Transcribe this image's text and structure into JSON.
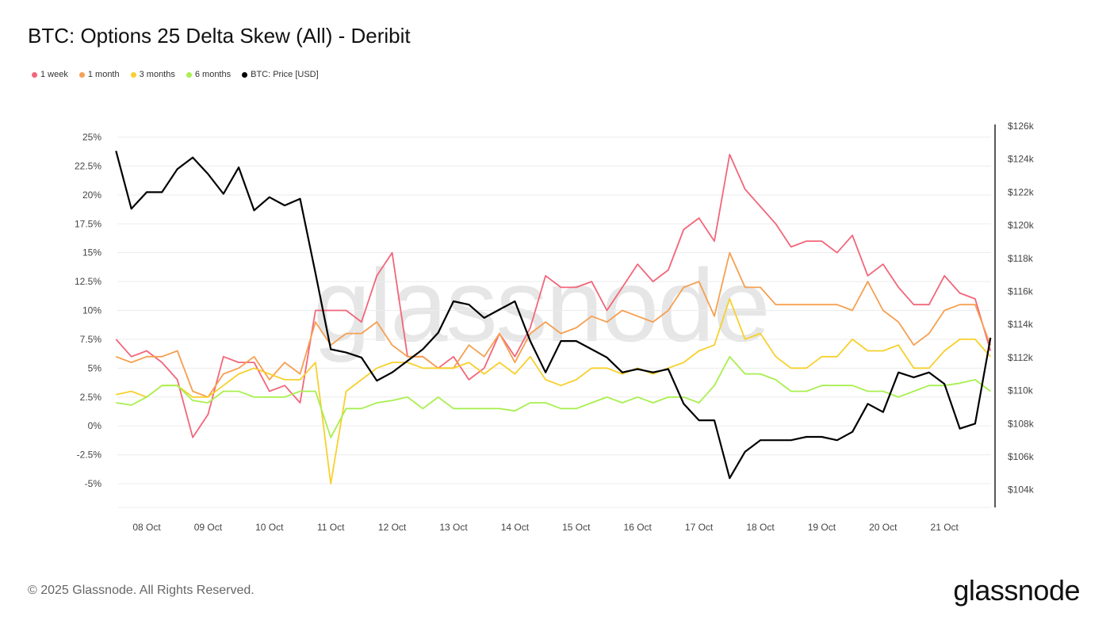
{
  "header": {
    "title": "BTC: Options 25 Delta Skew (All) - Deribit"
  },
  "footer": {
    "copyright": "© 2025 Glassnode. All Rights Reserved.",
    "logo": "glassnode",
    "watermark": "glassnode"
  },
  "chart_data": {
    "type": "line",
    "title": "BTC: Options 25 Delta Skew (All) - Deribit",
    "legend_position": "top-left",
    "grid": true,
    "x": [
      "2025-10-07T12:00",
      "2025-10-07T18:00",
      "2025-10-08T00:00",
      "2025-10-08T06:00",
      "2025-10-08T12:00",
      "2025-10-08T18:00",
      "2025-10-09T00:00",
      "2025-10-09T06:00",
      "2025-10-09T12:00",
      "2025-10-09T18:00",
      "2025-10-10T00:00",
      "2025-10-10T06:00",
      "2025-10-10T12:00",
      "2025-10-10T18:00",
      "2025-10-11T00:00",
      "2025-10-11T06:00",
      "2025-10-11T12:00",
      "2025-10-11T18:00",
      "2025-10-12T00:00",
      "2025-10-12T06:00",
      "2025-10-12T12:00",
      "2025-10-12T18:00",
      "2025-10-13T00:00",
      "2025-10-13T06:00",
      "2025-10-13T12:00",
      "2025-10-13T18:00",
      "2025-10-14T00:00",
      "2025-10-14T06:00",
      "2025-10-14T12:00",
      "2025-10-14T18:00",
      "2025-10-15T00:00",
      "2025-10-15T06:00",
      "2025-10-15T12:00",
      "2025-10-15T18:00",
      "2025-10-16T00:00",
      "2025-10-16T06:00",
      "2025-10-16T12:00",
      "2025-10-16T18:00",
      "2025-10-17T00:00",
      "2025-10-17T06:00",
      "2025-10-17T12:00",
      "2025-10-17T18:00",
      "2025-10-18T00:00",
      "2025-10-18T06:00",
      "2025-10-18T12:00",
      "2025-10-18T18:00",
      "2025-10-19T00:00",
      "2025-10-19T06:00",
      "2025-10-19T12:00",
      "2025-10-19T18:00",
      "2025-10-20T00:00",
      "2025-10-20T06:00",
      "2025-10-20T12:00",
      "2025-10-20T18:00",
      "2025-10-21T00:00",
      "2025-10-21T06:00",
      "2025-10-21T12:00",
      "2025-10-21T18:00"
    ],
    "x_ticks": [
      "08 Oct",
      "09 Oct",
      "10 Oct",
      "11 Oct",
      "12 Oct",
      "13 Oct",
      "14 Oct",
      "15 Oct",
      "16 Oct",
      "17 Oct",
      "18 Oct",
      "19 Oct",
      "20 Oct",
      "21 Oct"
    ],
    "y_left": {
      "ticks": [
        "25%",
        "22.5%",
        "20%",
        "17.5%",
        "15%",
        "12.5%",
        "10%",
        "7.5%",
        "5%",
        "2.5%",
        "0%",
        "-2.5%",
        "-5%"
      ],
      "range": [
        -7,
        25
      ]
    },
    "y_right": {
      "ticks": [
        "$126k",
        "$124k",
        "$122k",
        "$120k",
        "$118k",
        "$116k",
        "$114k",
        "$112k",
        "$110k",
        "$108k",
        "$106k",
        "$104k"
      ],
      "range": [
        102.6,
        126
      ]
    },
    "series": [
      {
        "name": "1 week",
        "axis": "left",
        "color": "#f2667a",
        "values": [
          7.5,
          6,
          6.5,
          5.5,
          4,
          -1,
          1,
          6,
          5.5,
          5.5,
          3,
          3.5,
          2,
          10,
          10,
          10,
          9,
          13,
          15,
          6,
          6,
          5,
          6,
          4,
          5,
          8,
          6,
          8.5,
          13,
          12,
          12,
          12.5,
          10,
          12,
          14,
          12.5,
          13.5,
          17,
          18,
          16,
          23.5,
          20.5,
          19,
          17.5,
          15.5,
          16,
          16,
          15,
          16.5,
          13,
          14,
          12,
          10.5,
          10.5,
          13,
          11.5,
          11,
          6.5
        ]
      },
      {
        "name": "1 month",
        "axis": "left",
        "color": "#f5a052",
        "values": [
          6,
          5.5,
          6,
          6,
          6.5,
          3,
          2.5,
          4.5,
          5,
          6,
          4,
          5.5,
          4.5,
          9,
          7,
          8,
          8,
          9,
          7,
          6,
          6,
          5,
          5,
          7,
          6,
          8,
          5.5,
          8,
          9,
          8,
          8.5,
          9.5,
          9,
          10,
          9.5,
          9,
          10,
          12,
          12.5,
          9.5,
          15,
          12,
          12,
          10.5,
          10.5,
          10.5,
          10.5,
          10.5,
          10,
          12.5,
          10,
          9,
          7,
          8,
          10,
          10.5,
          10.5,
          7
        ]
      },
      {
        "name": "3 months",
        "axis": "left",
        "color": "#f7d02c",
        "values": [
          2.7,
          3,
          2.5,
          3.5,
          3.5,
          2.5,
          2.5,
          3.5,
          4.5,
          5,
          4.5,
          4,
          4,
          5.5,
          -5,
          3,
          4,
          5,
          5.5,
          5.5,
          5,
          5,
          5,
          5.5,
          4.5,
          5.5,
          4.5,
          6,
          4,
          3.5,
          4,
          5,
          5,
          4.5,
          5,
          4.5,
          5,
          5.5,
          6.5,
          7,
          11,
          7.5,
          8,
          6,
          5,
          5,
          6,
          6,
          7.5,
          6.5,
          6.5,
          7,
          5,
          5,
          6.5,
          7.5,
          7.5,
          6
        ]
      },
      {
        "name": "6 months",
        "axis": "left",
        "color": "#a8ef4f",
        "values": [
          2,
          1.8,
          2.5,
          3.5,
          3.5,
          2.2,
          2,
          3,
          3,
          2.5,
          2.5,
          2.5,
          3,
          3,
          -1,
          1.5,
          1.5,
          2,
          2.2,
          2.5,
          1.5,
          2.5,
          1.5,
          1.5,
          1.5,
          1.5,
          1.3,
          2,
          2,
          1.5,
          1.5,
          2,
          2.5,
          2,
          2.5,
          2,
          2.5,
          2.5,
          2,
          3.5,
          6,
          4.5,
          4.5,
          4,
          3,
          3,
          3.5,
          3.5,
          3.5,
          3,
          3,
          2.5,
          3,
          3.5,
          3.5,
          3.7,
          4,
          3
        ]
      },
      {
        "name": "BTC: Price [USD]",
        "axis": "right",
        "color": "#000000",
        "unit": "k USD",
        "values": [
          124.5,
          121,
          122,
          122,
          123.4,
          124.1,
          123.1,
          121.9,
          123.5,
          120.9,
          121.7,
          121.2,
          121.6,
          117.1,
          112.5,
          112.3,
          112,
          110.6,
          111.1,
          111.8,
          112.5,
          113.5,
          115.4,
          115.2,
          114.4,
          114.9,
          115.4,
          113,
          111.1,
          113,
          113,
          112.5,
          112,
          111.1,
          111.3,
          111.1,
          111.3,
          109.2,
          108.2,
          108.2,
          104.7,
          106.3,
          107,
          107,
          107,
          107.2,
          107.2,
          107,
          107.5,
          109.2,
          108.7,
          111.1,
          110.8,
          111.1,
          110.4,
          107.7,
          108,
          113.2
        ]
      }
    ]
  }
}
